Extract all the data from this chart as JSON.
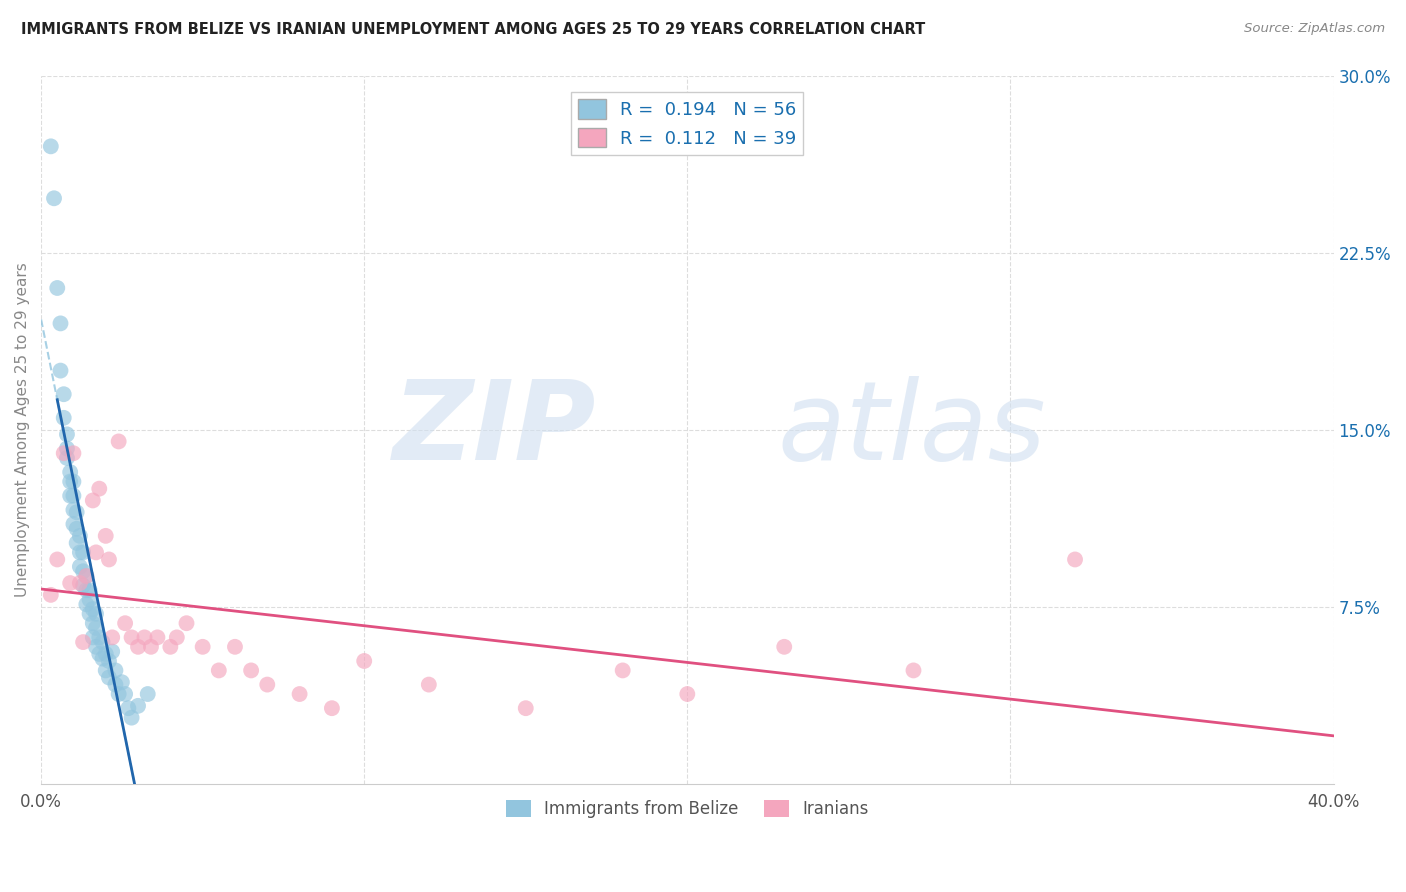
{
  "title": "IMMIGRANTS FROM BELIZE VS IRANIAN UNEMPLOYMENT AMONG AGES 25 TO 29 YEARS CORRELATION CHART",
  "source": "Source: ZipAtlas.com",
  "ylabel": "Unemployment Among Ages 25 to 29 years",
  "xlim": [
    0.0,
    0.4
  ],
  "ylim": [
    0.0,
    0.3
  ],
  "yticks_right": [
    0.075,
    0.15,
    0.225,
    0.3
  ],
  "ytick_right_labels": [
    "7.5%",
    "15.0%",
    "22.5%",
    "30.0%"
  ],
  "R_blue": 0.194,
  "N_blue": 56,
  "R_pink": 0.112,
  "N_pink": 39,
  "blue_color": "#92c5de",
  "pink_color": "#f4a6be",
  "blue_line_color": "#2166ac",
  "blue_dash_color": "#92c5de",
  "pink_line_color": "#e05080",
  "blue_scatter_x": [
    0.003,
    0.004,
    0.005,
    0.006,
    0.006,
    0.007,
    0.007,
    0.008,
    0.008,
    0.008,
    0.009,
    0.009,
    0.009,
    0.01,
    0.01,
    0.01,
    0.01,
    0.011,
    0.011,
    0.011,
    0.012,
    0.012,
    0.012,
    0.013,
    0.013,
    0.013,
    0.014,
    0.014,
    0.014,
    0.015,
    0.015,
    0.015,
    0.016,
    0.016,
    0.016,
    0.017,
    0.017,
    0.017,
    0.018,
    0.018,
    0.019,
    0.019,
    0.02,
    0.02,
    0.021,
    0.021,
    0.022,
    0.023,
    0.023,
    0.024,
    0.025,
    0.026,
    0.027,
    0.028,
    0.03,
    0.033
  ],
  "blue_scatter_y": [
    0.27,
    0.248,
    0.21,
    0.195,
    0.175,
    0.165,
    0.155,
    0.148,
    0.142,
    0.138,
    0.132,
    0.128,
    0.122,
    0.128,
    0.122,
    0.116,
    0.11,
    0.115,
    0.108,
    0.102,
    0.105,
    0.098,
    0.092,
    0.098,
    0.09,
    0.084,
    0.088,
    0.082,
    0.076,
    0.082,
    0.078,
    0.072,
    0.068,
    0.074,
    0.062,
    0.066,
    0.072,
    0.058,
    0.062,
    0.055,
    0.06,
    0.053,
    0.055,
    0.048,
    0.052,
    0.045,
    0.056,
    0.048,
    0.042,
    0.038,
    0.043,
    0.038,
    0.032,
    0.028,
    0.033,
    0.038
  ],
  "pink_scatter_x": [
    0.003,
    0.005,
    0.007,
    0.009,
    0.01,
    0.012,
    0.013,
    0.014,
    0.016,
    0.017,
    0.018,
    0.02,
    0.021,
    0.022,
    0.024,
    0.026,
    0.028,
    0.03,
    0.032,
    0.034,
    0.036,
    0.04,
    0.042,
    0.045,
    0.05,
    0.055,
    0.06,
    0.065,
    0.07,
    0.08,
    0.09,
    0.1,
    0.12,
    0.15,
    0.18,
    0.2,
    0.23,
    0.27,
    0.32
  ],
  "pink_scatter_y": [
    0.08,
    0.095,
    0.14,
    0.085,
    0.14,
    0.085,
    0.06,
    0.088,
    0.12,
    0.098,
    0.125,
    0.105,
    0.095,
    0.062,
    0.145,
    0.068,
    0.062,
    0.058,
    0.062,
    0.058,
    0.062,
    0.058,
    0.062,
    0.068,
    0.058,
    0.048,
    0.058,
    0.048,
    0.042,
    0.038,
    0.032,
    0.052,
    0.042,
    0.032,
    0.048,
    0.038,
    0.058,
    0.048,
    0.095
  ]
}
